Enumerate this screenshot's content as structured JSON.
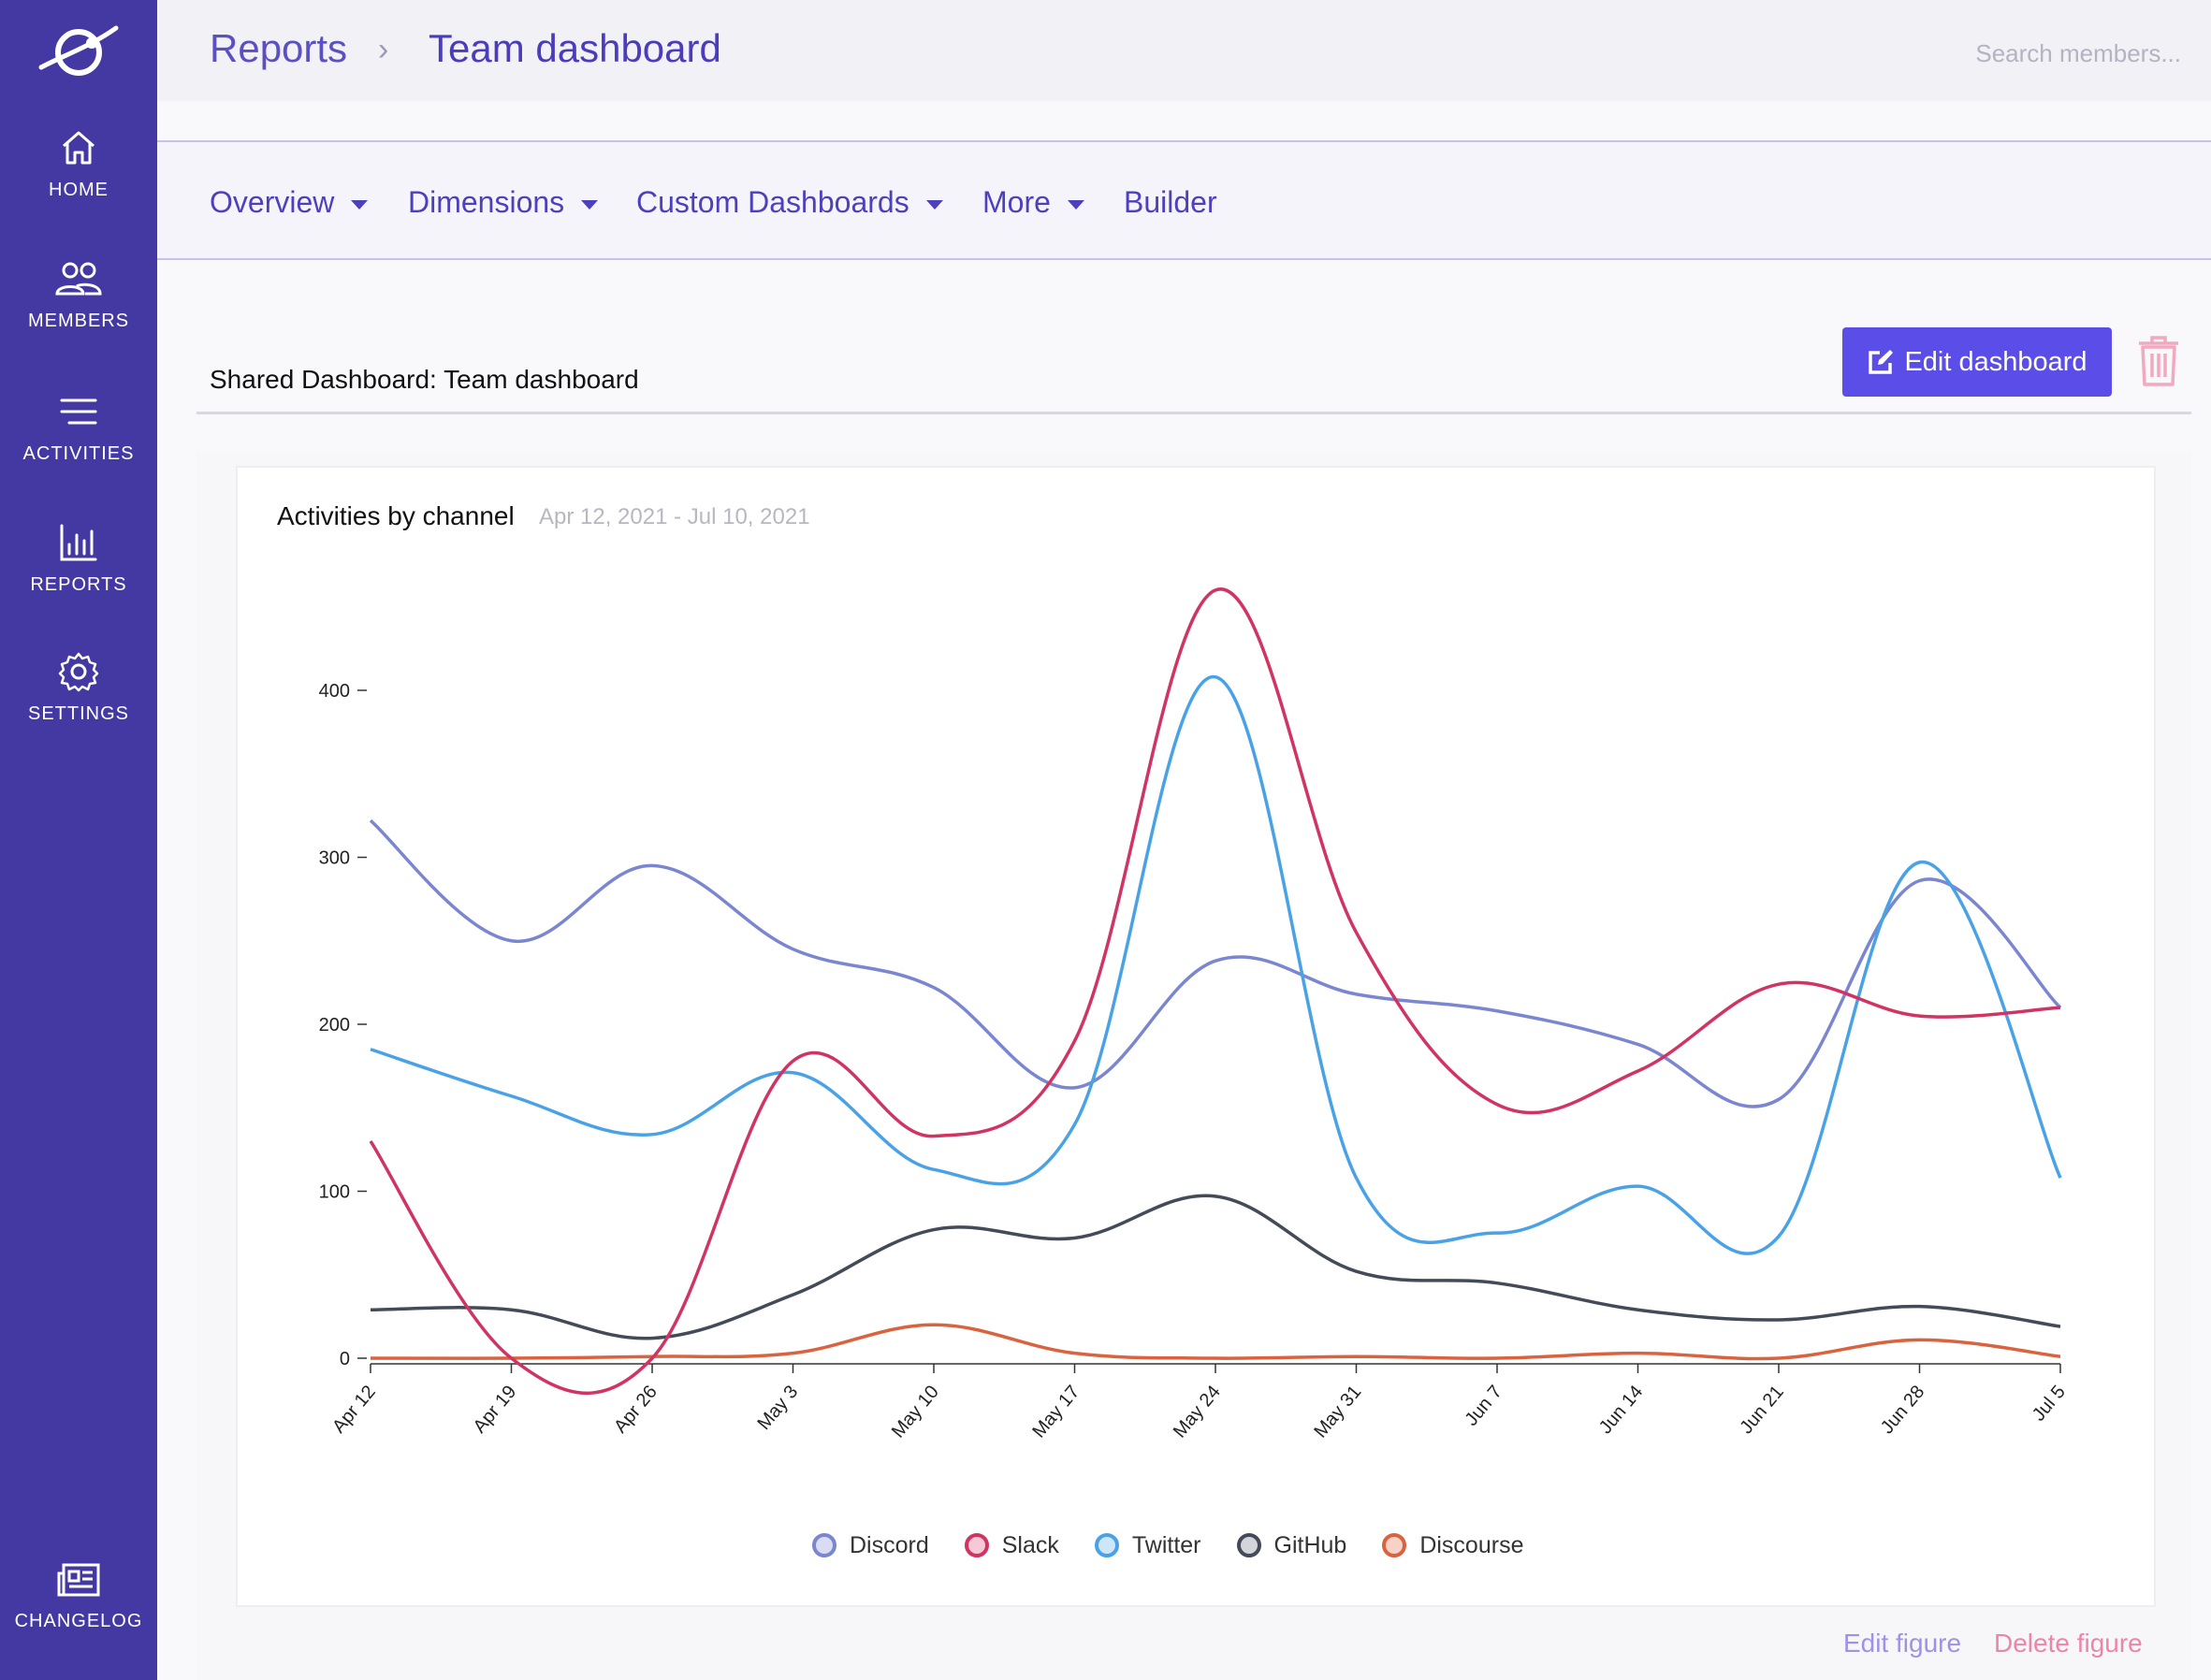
{
  "sidebar": {
    "items": [
      {
        "label": "HOME",
        "icon": "home-icon"
      },
      {
        "label": "MEMBERS",
        "icon": "members-icon"
      },
      {
        "label": "ACTIVITIES",
        "icon": "activities-icon"
      },
      {
        "label": "REPORTS",
        "icon": "reports-icon"
      },
      {
        "label": "SETTINGS",
        "icon": "settings-icon"
      }
    ],
    "bottom": {
      "label": "CHANGELOG",
      "icon": "changelog-icon"
    }
  },
  "breadcrumb": {
    "parent": "Reports",
    "separator": "›",
    "current": "Team dashboard"
  },
  "search": {
    "placeholder": "Search members..."
  },
  "tabs": [
    {
      "label": "Overview",
      "dropdown": true
    },
    {
      "label": "Dimensions",
      "dropdown": true
    },
    {
      "label": "Custom Dashboards",
      "dropdown": true
    },
    {
      "label": "More",
      "dropdown": true
    },
    {
      "label": "Builder",
      "dropdown": false
    }
  ],
  "dashboard": {
    "title": "Shared Dashboard: Team dashboard",
    "edit_label": "Edit dashboard",
    "accent": "#5b4ee8"
  },
  "figure": {
    "title": "Activities by channel",
    "range": "Apr 12, 2021 - Jul 10, 2021",
    "edit_label": "Edit figure",
    "delete_label": "Delete figure"
  },
  "chart_data": {
    "type": "line",
    "title": "Activities by channel",
    "subtitle": "Apr 12, 2021 - Jul 10, 2021",
    "categories": [
      "Apr 12",
      "Apr 19",
      "Apr 26",
      "May 3",
      "May 10",
      "May 17",
      "May 24",
      "May 31",
      "Jun 7",
      "Jun 14",
      "Jun 21",
      "Jun 28",
      "Jul 5"
    ],
    "ylim": [
      0,
      460
    ],
    "yticks": [
      0,
      100,
      200,
      300,
      400
    ],
    "legend_position": "bottom",
    "grid": false,
    "series": [
      {
        "name": "Discord",
        "color": "#7b86d1",
        "fill": "#d9dcf3",
        "values": [
          322,
          250,
          295,
          245,
          222,
          162,
          238,
          218,
          208,
          188,
          155,
          286,
          210
        ]
      },
      {
        "name": "Slack",
        "color": "#d03463",
        "fill": "#f5c9d6",
        "values": [
          130,
          0,
          0,
          178,
          133,
          190,
          460,
          255,
          152,
          172,
          224,
          205,
          210
        ]
      },
      {
        "name": "Twitter",
        "color": "#4aa2e6",
        "fill": "#cfe6f9",
        "values": [
          185,
          157,
          134,
          171,
          113,
          140,
          408,
          108,
          75,
          103,
          73,
          297,
          108
        ]
      },
      {
        "name": "GitHub",
        "color": "#434a58",
        "fill": "#d3d5da",
        "values": [
          29,
          29,
          12,
          38,
          77,
          72,
          97,
          52,
          45,
          29,
          23,
          31,
          19
        ]
      },
      {
        "name": "Discourse",
        "color": "#d9633f",
        "fill": "#f6d3c6",
        "values": [
          0,
          0,
          1,
          3,
          20,
          3,
          0,
          1,
          0,
          3,
          0,
          11,
          1
        ]
      }
    ]
  }
}
